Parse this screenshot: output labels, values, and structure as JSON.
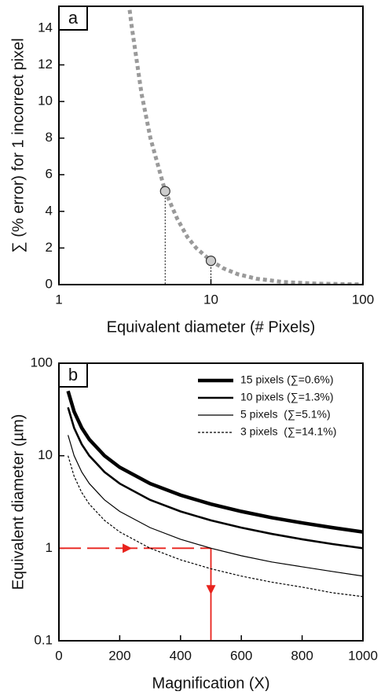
{
  "chart_data": [
    {
      "type": "line",
      "panel_label": "a",
      "xlabel": "Equivalent diameter (# Pixels)",
      "ylabel": "∑ (% error) for 1 incorrect pixel",
      "x_scale": "log",
      "xlim": [
        1,
        100
      ],
      "xticks": [
        1,
        10,
        100
      ],
      "ylim": [
        0,
        15.2
      ],
      "yticks": [
        0,
        2,
        4,
        6,
        8,
        10,
        12,
        14
      ],
      "series": [
        {
          "color": "#9a9a9a",
          "style": "dotted",
          "width": 5,
          "x": [
            2.92,
            3,
            3.5,
            4,
            5,
            6,
            7,
            8,
            10,
            12,
            15,
            20,
            30,
            50,
            100
          ],
          "values": [
            15.0,
            14.2,
            10.4,
            8.0,
            5.1,
            3.6,
            2.6,
            2.0,
            1.3,
            0.9,
            0.57,
            0.32,
            0.14,
            0.05,
            0.01
          ]
        },
        {
          "color": "#cccccc",
          "markers": true,
          "droplines": true,
          "x": [
            5,
            10
          ],
          "values": [
            5.1,
            1.3
          ]
        }
      ]
    },
    {
      "type": "line",
      "panel_label": "b",
      "xlabel": "Magnification (X)",
      "ylabel": "Equivalent diameter (µm)",
      "xlim": [
        0,
        1000
      ],
      "xticks": [
        0,
        200,
        400,
        600,
        800,
        1000
      ],
      "y_scale": "log",
      "ylim": [
        0.1,
        100
      ],
      "yticks": [
        0.1,
        1,
        10,
        100
      ],
      "legend": "upper right",
      "series": [
        {
          "name": "15 pixels (∑=0.6%)",
          "color": "#000000",
          "width": 4.5,
          "style": "solid",
          "x": [
            30,
            50,
            75,
            100,
            150,
            200,
            300,
            400,
            500,
            600,
            700,
            800,
            900,
            1000
          ],
          "values": [
            50,
            30,
            20,
            15,
            10,
            7.5,
            5,
            3.75,
            3,
            2.5,
            2.14,
            1.88,
            1.67,
            1.5
          ]
        },
        {
          "name": "10 pixels (∑=1.3%)",
          "color": "#000000",
          "width": 2.6,
          "style": "solid",
          "x": [
            30,
            50,
            75,
            100,
            150,
            200,
            300,
            400,
            500,
            600,
            700,
            800,
            900,
            1000
          ],
          "values": [
            33.3,
            20,
            13.3,
            10,
            6.67,
            5,
            3.33,
            2.5,
            2,
            1.67,
            1.43,
            1.25,
            1.11,
            1.0
          ]
        },
        {
          "name": "5 pixels  (∑=5.1%)",
          "color": "#000000",
          "width": 1.2,
          "style": "solid",
          "x": [
            30,
            50,
            75,
            100,
            150,
            200,
            300,
            400,
            500,
            600,
            700,
            800,
            900,
            1000
          ],
          "values": [
            16.7,
            10,
            6.67,
            5,
            3.33,
            2.5,
            1.67,
            1.25,
            1.0,
            0.83,
            0.71,
            0.63,
            0.56,
            0.5
          ]
        },
        {
          "name": "3 pixels  (∑=14.1%)",
          "color": "#000000",
          "width": 1.2,
          "style": "dotted",
          "x": [
            30,
            50,
            75,
            100,
            150,
            200,
            300,
            400,
            500,
            600,
            700,
            800,
            900,
            1000
          ],
          "values": [
            10,
            6,
            4,
            3,
            2,
            1.5,
            1.0,
            0.75,
            0.6,
            0.5,
            0.43,
            0.38,
            0.33,
            0.3
          ]
        }
      ],
      "guide": {
        "color": "#e8221c",
        "x": 500,
        "y": 1
      }
    }
  ]
}
